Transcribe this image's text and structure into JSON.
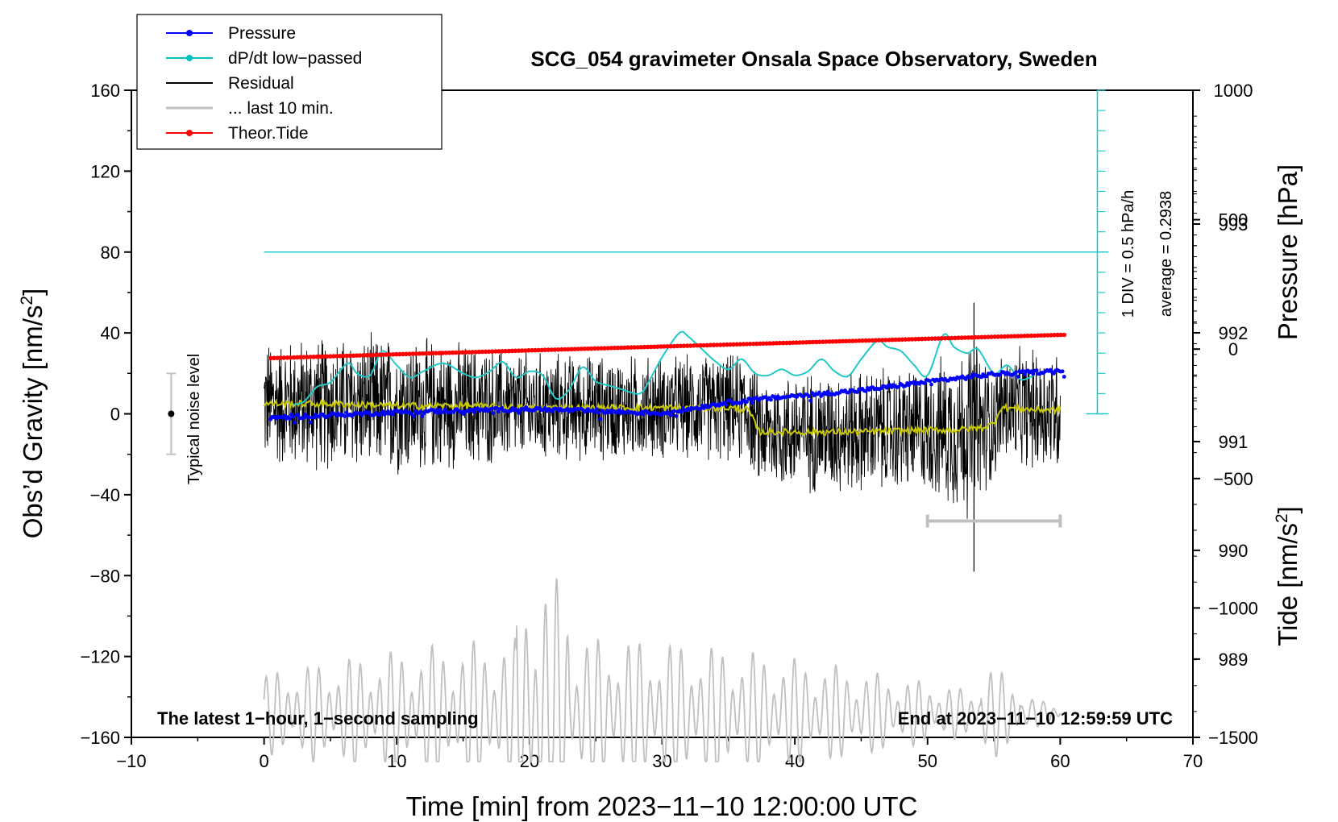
{
  "chart_data": {
    "type": "line",
    "title": "SCG_054 gravimeter Onsala Space Observatory, Sweden",
    "xlabel": "Time [min] from 2023−11−10 12:00:00 UTC",
    "ylabel_left": "Obs’d Gravity [nm/s",
    "ylabel_left_sup": "2",
    "ylabel_left_end": "]",
    "ylabel_pressure": "Pressure [hPa]",
    "ylabel_tide": "Tide [nm/s",
    "ylabel_tide_sup": "2",
    "ylabel_tide_end": "]",
    "xlim": [
      -10,
      70
    ],
    "ylim": [
      -160,
      160
    ],
    "x_ticks": [
      -10,
      0,
      10,
      20,
      30,
      40,
      50,
      60,
      70
    ],
    "x_tick_labels": [
      "−10",
      "0",
      "10",
      "20",
      "30",
      "40",
      "50",
      "60",
      "70"
    ],
    "y_ticks": [
      160,
      120,
      80,
      40,
      0,
      -40,
      -80,
      -120,
      -160
    ],
    "y_tick_labels": [
      "160",
      "120",
      "80",
      "40",
      "0",
      "−40",
      "−80",
      "−120",
      "−160"
    ],
    "pressure_axis": {
      "range": [
        988.28,
        994.23
      ],
      "ticks": [
        993,
        992,
        991,
        990,
        989
      ],
      "tick_labels": [
        "993",
        "992",
        "991",
        "990",
        "989"
      ]
    },
    "tide_axis": {
      "range": [
        -1500,
        1000
      ],
      "ticks": [
        1000,
        500,
        0,
        -500,
        -1000,
        -1500
      ],
      "tick_labels": [
        "1000",
        "500",
        "0",
        "−500",
        "−1000",
        "−1500"
      ]
    },
    "legend": [
      {
        "label": "Pressure",
        "color": "#0000ff",
        "marker": true
      },
      {
        "label": "dP/dt low−passed",
        "color": "#00c0c0",
        "marker": true
      },
      {
        "label": "Residual",
        "color": "#000000",
        "marker": false
      },
      {
        "label": "... last 10 min.",
        "color": "#c0c0c0",
        "marker": false
      },
      {
        "label": "Theor.Tide",
        "color": "#ff0000",
        "marker": true
      }
    ],
    "series": [
      {
        "name": "Pressure",
        "color": "#0000ff",
        "unit": "hPa",
        "x": [
          0.5,
          10,
          20,
          25,
          30,
          35,
          40,
          45,
          50,
          55,
          60
        ],
        "values": [
          991.22,
          991.27,
          991.3,
          991.28,
          991.26,
          991.36,
          991.42,
          991.47,
          991.55,
          991.62,
          991.65
        ]
      },
      {
        "name": "dP/dt low-passed",
        "color": "#00c0c0",
        "unit": "hPa/h (1 DIV = 0.5 hPa/h)",
        "x": [
          2.2,
          3,
          4,
          5,
          6.3,
          7,
          8,
          8.9,
          10,
          11,
          12,
          13.5,
          15,
          16,
          17,
          18,
          19,
          20,
          21,
          22,
          23,
          24,
          25,
          26,
          27,
          28.3,
          29,
          30,
          31.3,
          32,
          33,
          34,
          35,
          36,
          37,
          38,
          39,
          40,
          41,
          42,
          43,
          44,
          45,
          46.2,
          47,
          48,
          49,
          50,
          51.2,
          52,
          53,
          53.8,
          55,
          56,
          57,
          58
        ],
        "values": [
          0.23,
          0.3,
          0.67,
          0.78,
          1.25,
          1.0,
          0.95,
          1.55,
          1.2,
          0.9,
          1.05,
          1.25,
          1.0,
          0.9,
          1.05,
          1.28,
          0.9,
          1.05,
          0.95,
          0.38,
          0.6,
          1.15,
          0.8,
          0.7,
          0.6,
          0.5,
          0.8,
          1.4,
          2.0,
          1.9,
          1.6,
          1.3,
          1.1,
          1.35,
          1.0,
          0.95,
          1.1,
          0.95,
          1.05,
          1.35,
          1.05,
          0.93,
          1.35,
          1.8,
          1.65,
          1.55,
          1.2,
          0.95,
          1.95,
          1.65,
          1.5,
          1.6,
          1.0,
          1.2,
          0.85,
          0.95
        ]
      },
      {
        "name": "Residual (smoothed)",
        "color": "#c8c800",
        "unit": "nm/s2",
        "x": [
          0,
          5,
          10,
          15,
          20,
          25,
          30,
          35,
          36.5,
          37.3,
          40,
          45,
          50,
          52,
          54,
          55,
          55.5,
          56,
          58,
          60
        ],
        "values": [
          5,
          5,
          4,
          4,
          3,
          3,
          3,
          3,
          2,
          -9,
          -9,
          -9,
          -8,
          -8,
          -7,
          -5,
          3,
          3,
          2,
          2
        ]
      },
      {
        "name": "Residual envelope (typical ± amplitude)",
        "color": "#000000",
        "unit": "nm/s2",
        "x": [
          0,
          10,
          20,
          30,
          37,
          40,
          50,
          53.5,
          55,
          60
        ],
        "values": [
          35,
          38,
          30,
          28,
          30,
          33,
          35,
          50,
          30,
          35
        ]
      },
      {
        "name": "... last 10 min.",
        "color": "#c0c0c0",
        "unit": "nm/s2",
        "x": [
          50,
          60
        ],
        "values": [
          -53,
          -53
        ]
      },
      {
        "name": "Theor.Tide",
        "color": "#ff0000",
        "unit": "nm/s2 (tide axis)",
        "x": [
          0.5,
          10,
          20,
          30,
          40,
          50,
          60
        ],
        "values": [
          -35,
          -20,
          -5,
          10,
          25,
          40,
          55
        ]
      }
    ],
    "pressure_average_label": "average = 0.2938",
    "pressure_div_label": "1 DIV = 0.5 hPa/h",
    "noise_level_label": "Typical noise level",
    "noise_level_range": [
      -20,
      20
    ],
    "noise_level_x": -7,
    "bottom_left_note": "The latest 1−hour, 1−second sampling",
    "bottom_right_note": "End at 2023−11−10 12:59:59 UTC",
    "grid": false,
    "legend_position": "top-left"
  }
}
